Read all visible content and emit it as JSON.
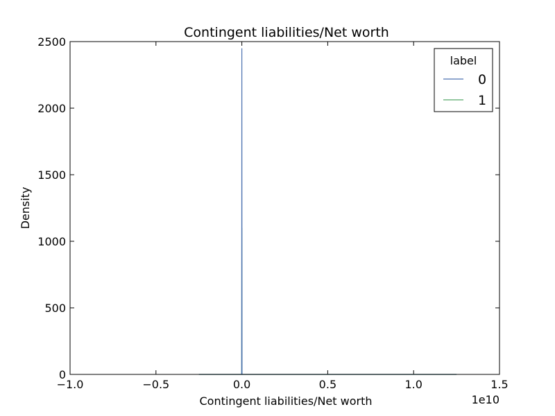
{
  "chart_data": {
    "type": "line",
    "title": "Contingent liabilities/Net worth",
    "xlabel": "Contingent liabilities/Net worth",
    "ylabel": "Density",
    "x_offset_label": "1e10",
    "xlim": [
      -1.0,
      1.5
    ],
    "ylim": [
      0,
      2500
    ],
    "xticks": [
      -1.0,
      -0.5,
      0.0,
      0.5,
      1.0,
      1.5
    ],
    "xtick_labels": [
      "−1.0",
      "−0.5",
      "0.0",
      "0.5",
      "1.0",
      "1.5"
    ],
    "yticks": [
      0,
      500,
      1000,
      1500,
      2000,
      2500
    ],
    "ytick_labels": [
      "0",
      "500",
      "1000",
      "1500",
      "2000",
      "2500"
    ],
    "grid": false,
    "legend": {
      "title": "label",
      "placement": "top-right",
      "entries": [
        "0",
        "1"
      ]
    },
    "series": [
      {
        "name": "0",
        "color": "#4c72b0",
        "x": [
          -0.25,
          -0.02,
          -0.001,
          0.0,
          0.001,
          0.02,
          1.25
        ],
        "y": [
          0,
          0,
          0,
          2450,
          0,
          0,
          0
        ]
      },
      {
        "name": "1",
        "color": "#55a868",
        "x": [
          -0.25,
          -0.02,
          -0.001,
          0.0,
          0.001,
          0.02,
          1.25
        ],
        "y": [
          0,
          0,
          0,
          1100,
          0,
          0,
          0
        ]
      }
    ]
  }
}
